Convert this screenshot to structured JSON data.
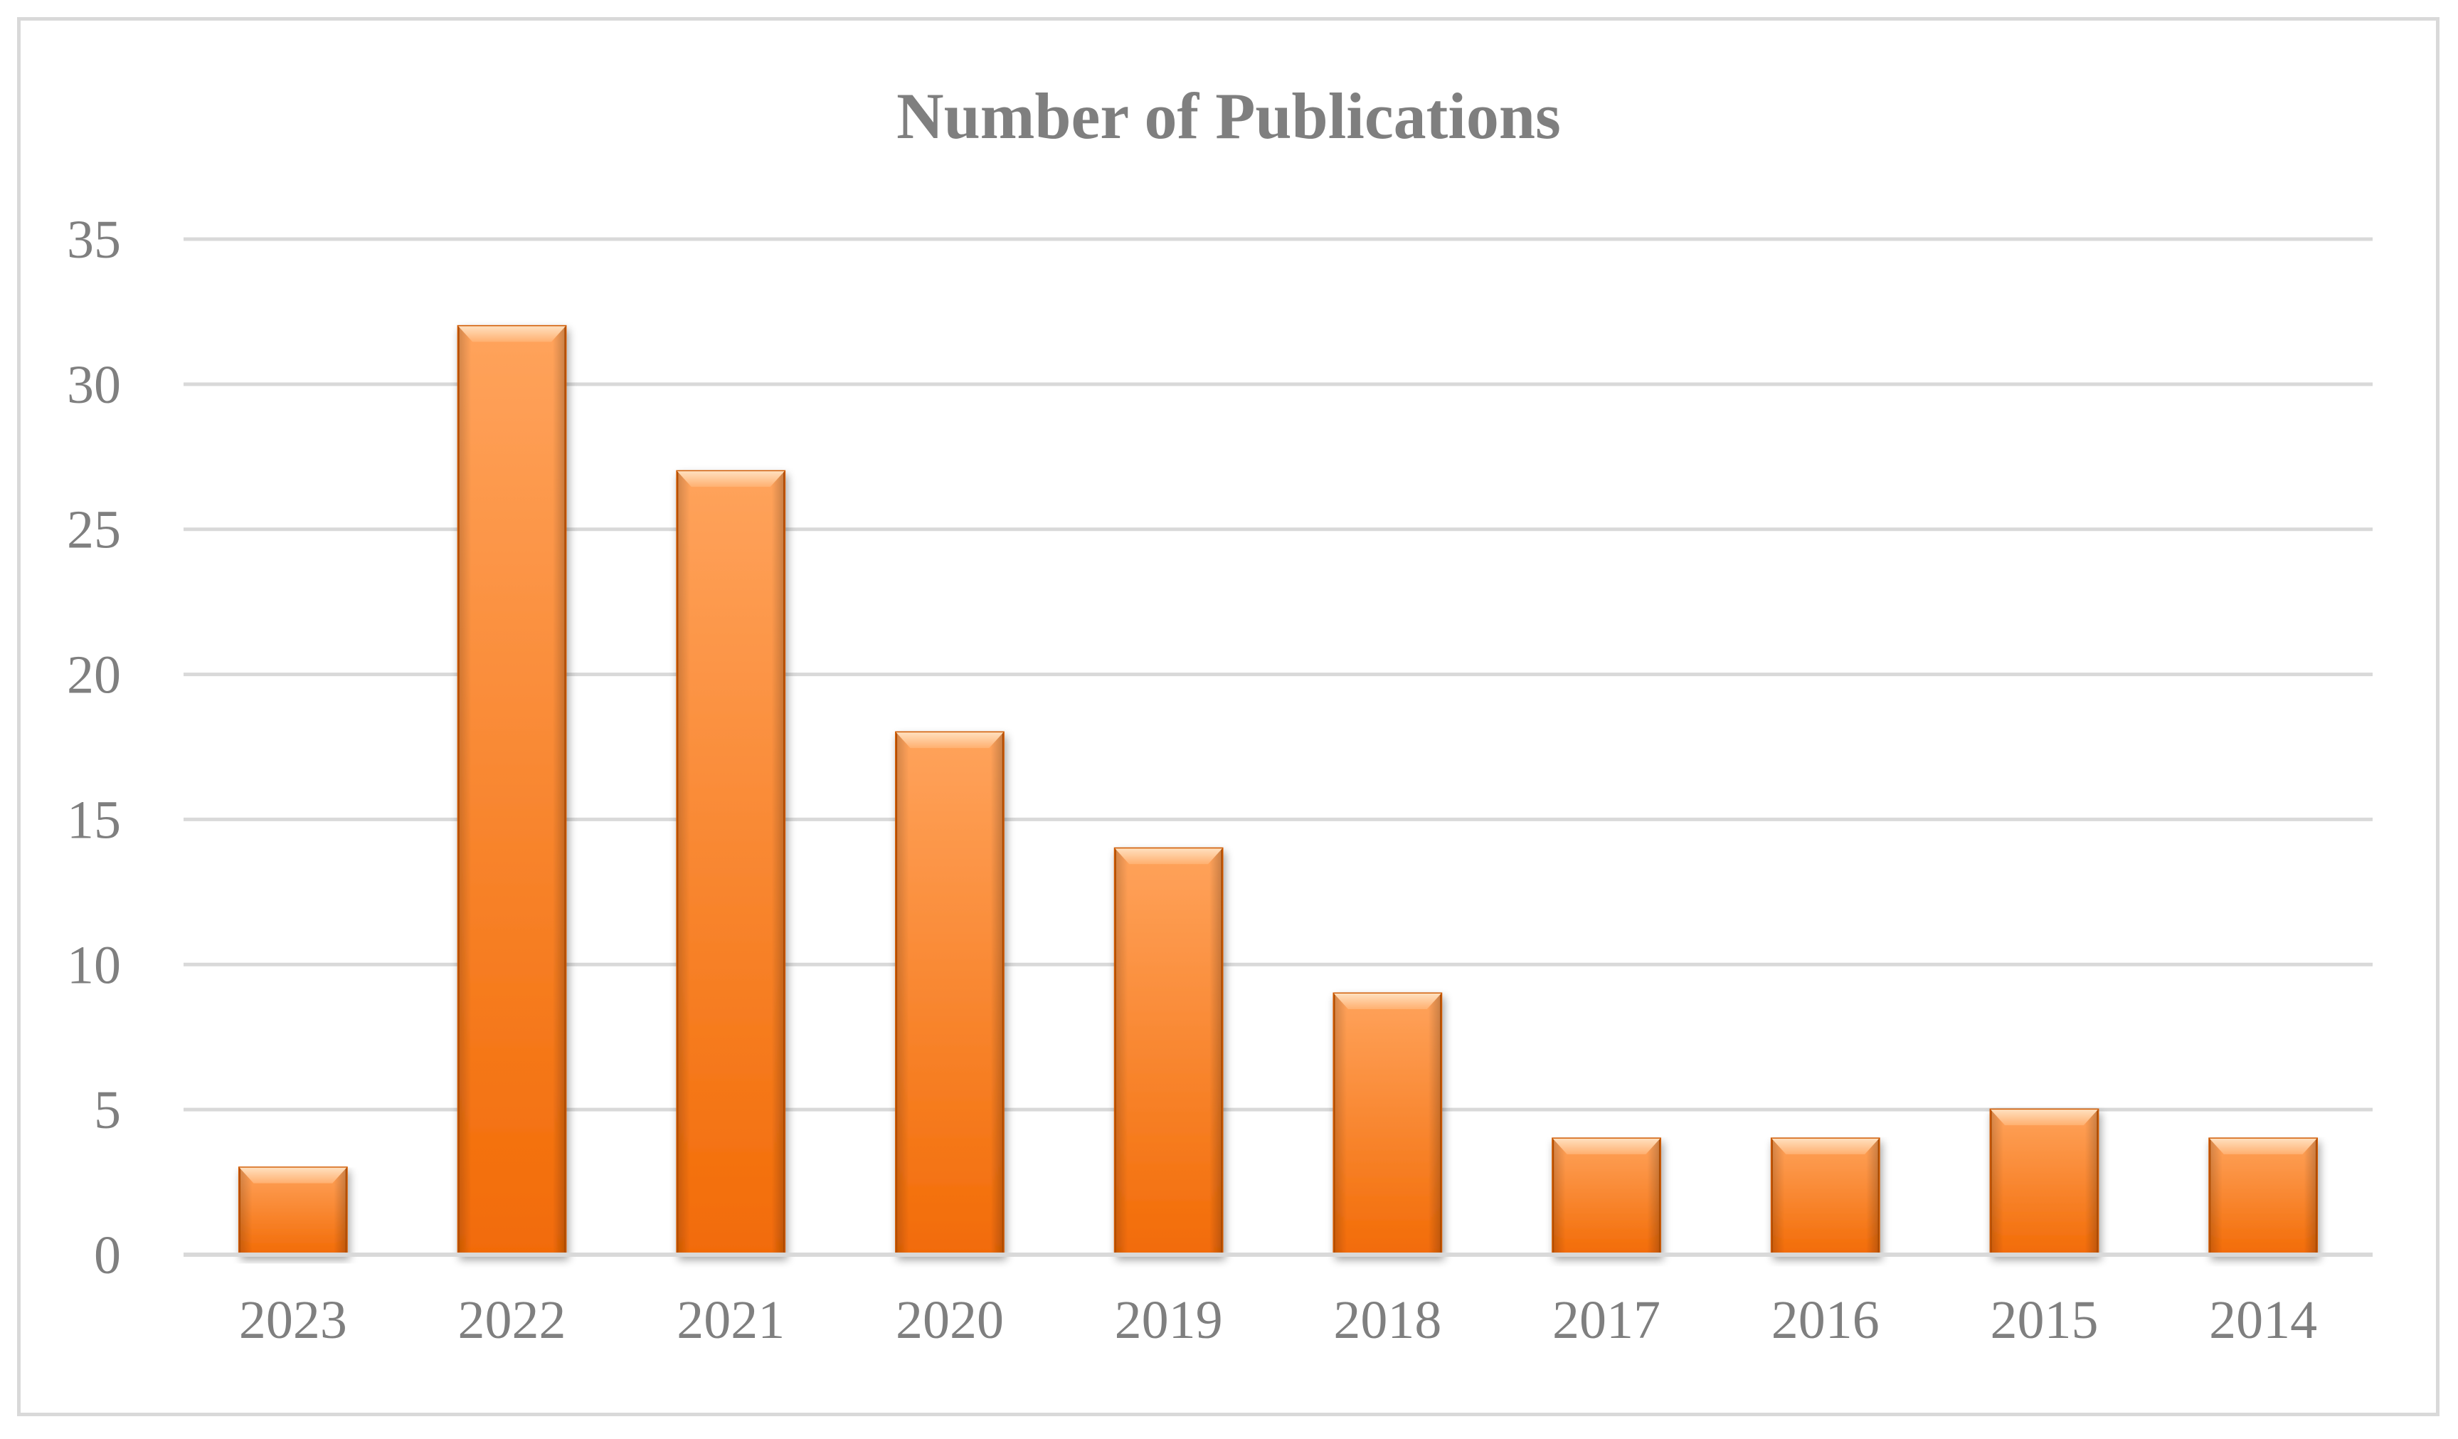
{
  "chart_data": {
    "type": "bar",
    "title": "Number of Publications",
    "xlabel": "",
    "ylabel": "",
    "categories": [
      "2023",
      "2022",
      "2021",
      "2020",
      "2019",
      "2018",
      "2017",
      "2016",
      "2015",
      "2014"
    ],
    "series": [
      {
        "values": [
          3,
          32,
          27,
          18,
          14,
          9,
          4,
          4,
          5,
          4
        ]
      }
    ],
    "ylim": [
      0,
      35
    ],
    "yticks": [
      "0",
      "5",
      "10",
      "15",
      "20",
      "25",
      "30",
      "35"
    ],
    "grid": true,
    "legend": "none",
    "colors": {
      "bar_light": "#ffa35c",
      "bar_mid": "#ff8a2a",
      "bar_dark": "#f26b06",
      "bar_edge": "#d15a00",
      "bar_bevel": "#ffd0a0",
      "text": "#7f7f7f",
      "grid": "#d9d9d9"
    }
  }
}
